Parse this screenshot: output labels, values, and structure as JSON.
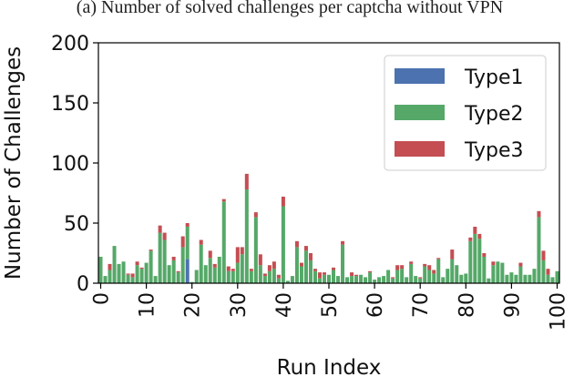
{
  "caption": "(a) Number of solved challenges per captcha without VPN",
  "chart_data": {
    "type": "bar",
    "stacked": true,
    "xlabel": "Run Index",
    "ylabel": "Number of Challenges",
    "ylim": [
      0,
      200
    ],
    "xlim": [
      -0.5,
      100.5
    ],
    "yticks": [
      "0",
      "50",
      "100",
      "150",
      "200"
    ],
    "xticks": [
      "0",
      "10",
      "20",
      "30",
      "40",
      "50",
      "60",
      "70",
      "80",
      "90",
      "100"
    ],
    "legend_position": "upper right",
    "x": [
      0,
      1,
      2,
      3,
      4,
      5,
      6,
      7,
      8,
      9,
      10,
      11,
      12,
      13,
      14,
      15,
      16,
      17,
      18,
      19,
      20,
      21,
      22,
      23,
      24,
      25,
      26,
      27,
      28,
      29,
      30,
      31,
      32,
      33,
      34,
      35,
      36,
      37,
      38,
      39,
      40,
      41,
      42,
      43,
      44,
      45,
      46,
      47,
      48,
      49,
      50,
      51,
      52,
      53,
      54,
      55,
      56,
      57,
      58,
      59,
      60,
      61,
      62,
      63,
      64,
      65,
      66,
      67,
      68,
      69,
      70,
      71,
      72,
      73,
      74,
      75,
      76,
      77,
      78,
      79,
      80,
      81,
      82,
      83,
      84,
      85,
      86,
      87,
      88,
      89,
      90,
      91,
      92,
      93,
      94,
      95,
      96,
      97,
      98,
      99,
      100
    ],
    "series": [
      {
        "name": "Type1",
        "color": "#4c72b0",
        "values": [
          0,
          0,
          0,
          0,
          0,
          0,
          0,
          0,
          0,
          0,
          0,
          0,
          0,
          0,
          0,
          0,
          0,
          0,
          0,
          20,
          0,
          0,
          0,
          0,
          0,
          0,
          0,
          0,
          0,
          0,
          0,
          0,
          0,
          0,
          0,
          0,
          0,
          0,
          0,
          0,
          0,
          0,
          0,
          0,
          0,
          0,
          0,
          0,
          0,
          0,
          0,
          0,
          0,
          0,
          0,
          0,
          0,
          0,
          0,
          0,
          0,
          0,
          0,
          0,
          0,
          0,
          0,
          0,
          0,
          0,
          0,
          0,
          0,
          0,
          0,
          0,
          0,
          0,
          0,
          0,
          0,
          0,
          0,
          0,
          0,
          0,
          0,
          0,
          0,
          0,
          0,
          0,
          0,
          0,
          0,
          0,
          0,
          0,
          0,
          0,
          0
        ]
      },
      {
        "name": "Type2",
        "color": "#55a868",
        "values": [
          22,
          6,
          11,
          31,
          16,
          18,
          7,
          5,
          15,
          12,
          17,
          27,
          6,
          42,
          36,
          15,
          19,
          9,
          30,
          27,
          1,
          11,
          32,
          15,
          21,
          13,
          22,
          68,
          10,
          10,
          17,
          24,
          78,
          10,
          55,
          15,
          6,
          10,
          12,
          4,
          64,
          2,
          6,
          30,
          14,
          27,
          19,
          10,
          4,
          7,
          7,
          11,
          6,
          32,
          5,
          6,
          6,
          7,
          5,
          9,
          3,
          5,
          6,
          11,
          4,
          11,
          12,
          5,
          16,
          6,
          4,
          14,
          11,
          8,
          20,
          5,
          12,
          20,
          15,
          7,
          8,
          35,
          41,
          37,
          22,
          4,
          15,
          18,
          17,
          7,
          9,
          7,
          14,
          7,
          7,
          12,
          55,
          19,
          7,
          5,
          10
        ]
      },
      {
        "name": "Type3",
        "color": "#c44e52",
        "values": [
          0,
          0,
          5,
          0,
          0,
          0,
          1,
          3,
          3,
          1,
          0,
          1,
          0,
          6,
          6,
          0,
          3,
          1,
          9,
          3,
          0,
          0,
          4,
          0,
          6,
          3,
          0,
          2,
          4,
          2,
          13,
          6,
          13,
          2,
          4,
          9,
          2,
          5,
          6,
          3,
          8,
          0,
          0,
          5,
          3,
          4,
          6,
          2,
          5,
          2,
          0,
          2,
          0,
          3,
          0,
          3,
          1,
          0,
          0,
          1,
          0,
          0,
          0,
          0,
          1,
          4,
          3,
          0,
          2,
          0,
          1,
          2,
          4,
          3,
          1,
          0,
          0,
          8,
          0,
          0,
          0,
          3,
          6,
          4,
          3,
          0,
          3,
          0,
          0,
          0,
          0,
          0,
          3,
          0,
          0,
          0,
          5,
          8,
          5,
          0,
          0
        ]
      }
    ]
  }
}
